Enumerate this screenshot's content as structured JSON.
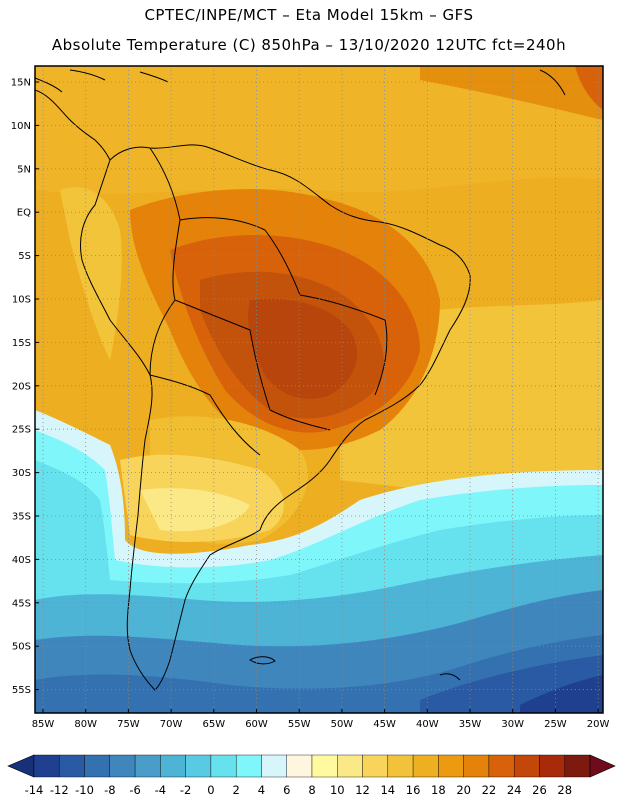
{
  "header": {
    "line1": "CPTEC/INPE/MCT –  Eta Model 15km – GFS",
    "line2": "Absolute Temperature (C) 850hPa – 13/10/2020 12UTC fct=240h"
  },
  "map": {
    "lat_labels": [
      "15N",
      "10N",
      "5N",
      "EQ",
      "5S",
      "10S",
      "15S",
      "20S",
      "25S",
      "30S",
      "35S",
      "40S",
      "45S",
      "50S",
      "55S"
    ],
    "lon_labels": [
      "85W",
      "80W",
      "75W",
      "70W",
      "65W",
      "60W",
      "55W",
      "50W",
      "45W",
      "40W",
      "35W",
      "30W",
      "25W",
      "20W"
    ]
  },
  "colorbar": {
    "labels": [
      "-14",
      "-12",
      "-10",
      "-8",
      "-6",
      "-4",
      "-2",
      "0",
      "2",
      "4",
      "6",
      "8",
      "10",
      "12",
      "14",
      "16",
      "18",
      "20",
      "22",
      "24",
      "26",
      "28"
    ],
    "colors": [
      "#1f3f8f",
      "#2a5aa3",
      "#3471b0",
      "#3f86bd",
      "#4a9dc9",
      "#4db4d6",
      "#58cae4",
      "#66e2ee",
      "#7ff6fa",
      "#d6f6fb",
      "#fff6e0",
      "#fffaa0",
      "#fbe887",
      "#f8d45a",
      "#f1c23a",
      "#eeb020",
      "#ec9a10",
      "#e4820a",
      "#d8620a",
      "#c3460a",
      "#a72a0a",
      "#7c1a10"
    ],
    "under_color": "#16307a",
    "over_color": "#6e0c1c"
  },
  "colors": {
    "ocean_warm": "#eeae22",
    "land_hot": "#d86a14",
    "cold_ocean": "#46b4d8",
    "frame": "#000000"
  }
}
